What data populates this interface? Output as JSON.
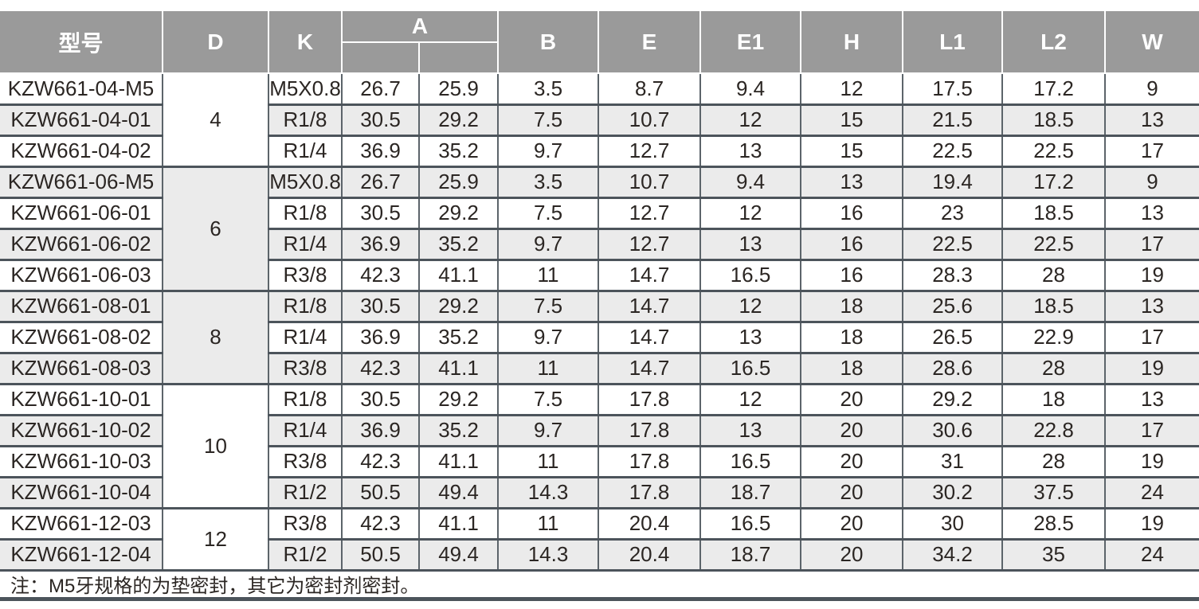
{
  "header": {
    "model": "型号",
    "d": "D",
    "k": "K",
    "a": "A",
    "b": "B",
    "e": "E",
    "e1": "E1",
    "h": "H",
    "l1": "L1",
    "l2": "L2",
    "w": "W"
  },
  "table": {
    "col_keys": [
      "model",
      "k",
      "a1",
      "a2",
      "b",
      "e",
      "e1",
      "h",
      "l1",
      "l2",
      "w"
    ],
    "groups": [
      {
        "d": "4",
        "rows": [
          [
            "KZW661-04-M5",
            "M5X0.8",
            "26.7",
            "25.9",
            "3.5",
            "8.7",
            "9.4",
            "12",
            "17.5",
            "17.2",
            "9"
          ],
          [
            "KZW661-04-01",
            "R1/8",
            "30.5",
            "29.2",
            "7.5",
            "10.7",
            "12",
            "15",
            "21.5",
            "18.5",
            "13"
          ],
          [
            "KZW661-04-02",
            "R1/4",
            "36.9",
            "35.2",
            "9.7",
            "12.7",
            "13",
            "15",
            "22.5",
            "22.5",
            "17"
          ]
        ]
      },
      {
        "d": "6",
        "rows": [
          [
            "KZW661-06-M5",
            "M5X0.8",
            "26.7",
            "25.9",
            "3.5",
            "10.7",
            "9.4",
            "13",
            "19.4",
            "17.2",
            "9"
          ],
          [
            "KZW661-06-01",
            "R1/8",
            "30.5",
            "29.2",
            "7.5",
            "12.7",
            "12",
            "16",
            "23",
            "18.5",
            "13"
          ],
          [
            "KZW661-06-02",
            "R1/4",
            "36.9",
            "35.2",
            "9.7",
            "12.7",
            "13",
            "16",
            "22.5",
            "22.5",
            "17"
          ],
          [
            "KZW661-06-03",
            "R3/8",
            "42.3",
            "41.1",
            "11",
            "14.7",
            "16.5",
            "16",
            "28.3",
            "28",
            "19"
          ]
        ]
      },
      {
        "d": "8",
        "rows": [
          [
            "KZW661-08-01",
            "R1/8",
            "30.5",
            "29.2",
            "7.5",
            "14.7",
            "12",
            "18",
            "25.6",
            "18.5",
            "13"
          ],
          [
            "KZW661-08-02",
            "R1/4",
            "36.9",
            "35.2",
            "9.7",
            "14.7",
            "13",
            "18",
            "26.5",
            "22.9",
            "17"
          ],
          [
            "KZW661-08-03",
            "R3/8",
            "42.3",
            "41.1",
            "11",
            "14.7",
            "16.5",
            "18",
            "28.6",
            "28",
            "19"
          ]
        ]
      },
      {
        "d": "10",
        "rows": [
          [
            "KZW661-10-01",
            "R1/8",
            "30.5",
            "29.2",
            "7.5",
            "17.8",
            "12",
            "20",
            "29.2",
            "18",
            "13"
          ],
          [
            "KZW661-10-02",
            "R1/4",
            "36.9",
            "35.2",
            "9.7",
            "17.8",
            "13",
            "20",
            "30.6",
            "22.8",
            "17"
          ],
          [
            "KZW661-10-03",
            "R3/8",
            "42.3",
            "41.1",
            "11",
            "17.8",
            "16.5",
            "20",
            "31",
            "28",
            "19"
          ],
          [
            "KZW661-10-04",
            "R1/2",
            "50.5",
            "49.4",
            "14.3",
            "17.8",
            "18.7",
            "20",
            "30.2",
            "37.5",
            "24"
          ]
        ]
      },
      {
        "d": "12",
        "rows": [
          [
            "KZW661-12-03",
            "R3/8",
            "42.3",
            "41.1",
            "11",
            "20.4",
            "16.5",
            "20",
            "30",
            "28.5",
            "19"
          ],
          [
            "KZW661-12-04",
            "R1/2",
            "50.5",
            "49.4",
            "14.3",
            "20.4",
            "18.7",
            "20",
            "34.2",
            "35",
            "24"
          ]
        ]
      }
    ]
  },
  "note": "注：M5牙规格的为垫密封，其它为密封剂密封。",
  "colors": {
    "header_bg": "#9a9a9a",
    "header_text": "#ffffff",
    "row_alt": "#ebebeb",
    "border_dark": "#4c545b",
    "body_text": "#2b2623"
  }
}
